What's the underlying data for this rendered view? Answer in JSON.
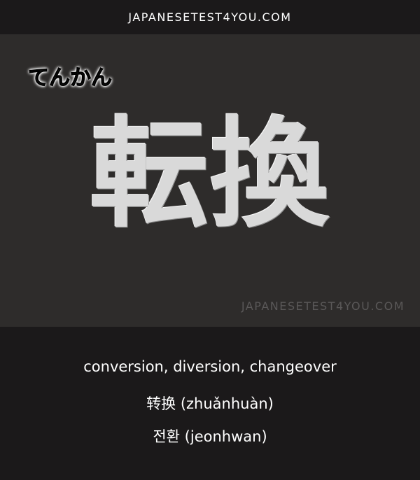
{
  "header": {
    "site": "JAPANESETEST4YOU.COM"
  },
  "card": {
    "reading": "てんかん",
    "kanji": "転換",
    "watermark": "JAPANESETEST4YOU.COM"
  },
  "translations": {
    "english": "conversion, diversion, changeover",
    "chinese": "转换 (zhuǎnhuàn)",
    "korean": "전환 (jeonhwan)"
  },
  "colors": {
    "background": "#1b191a",
    "panel": "#2e2c2b",
    "text": "#ffffff",
    "watermark": "#5a5858"
  }
}
